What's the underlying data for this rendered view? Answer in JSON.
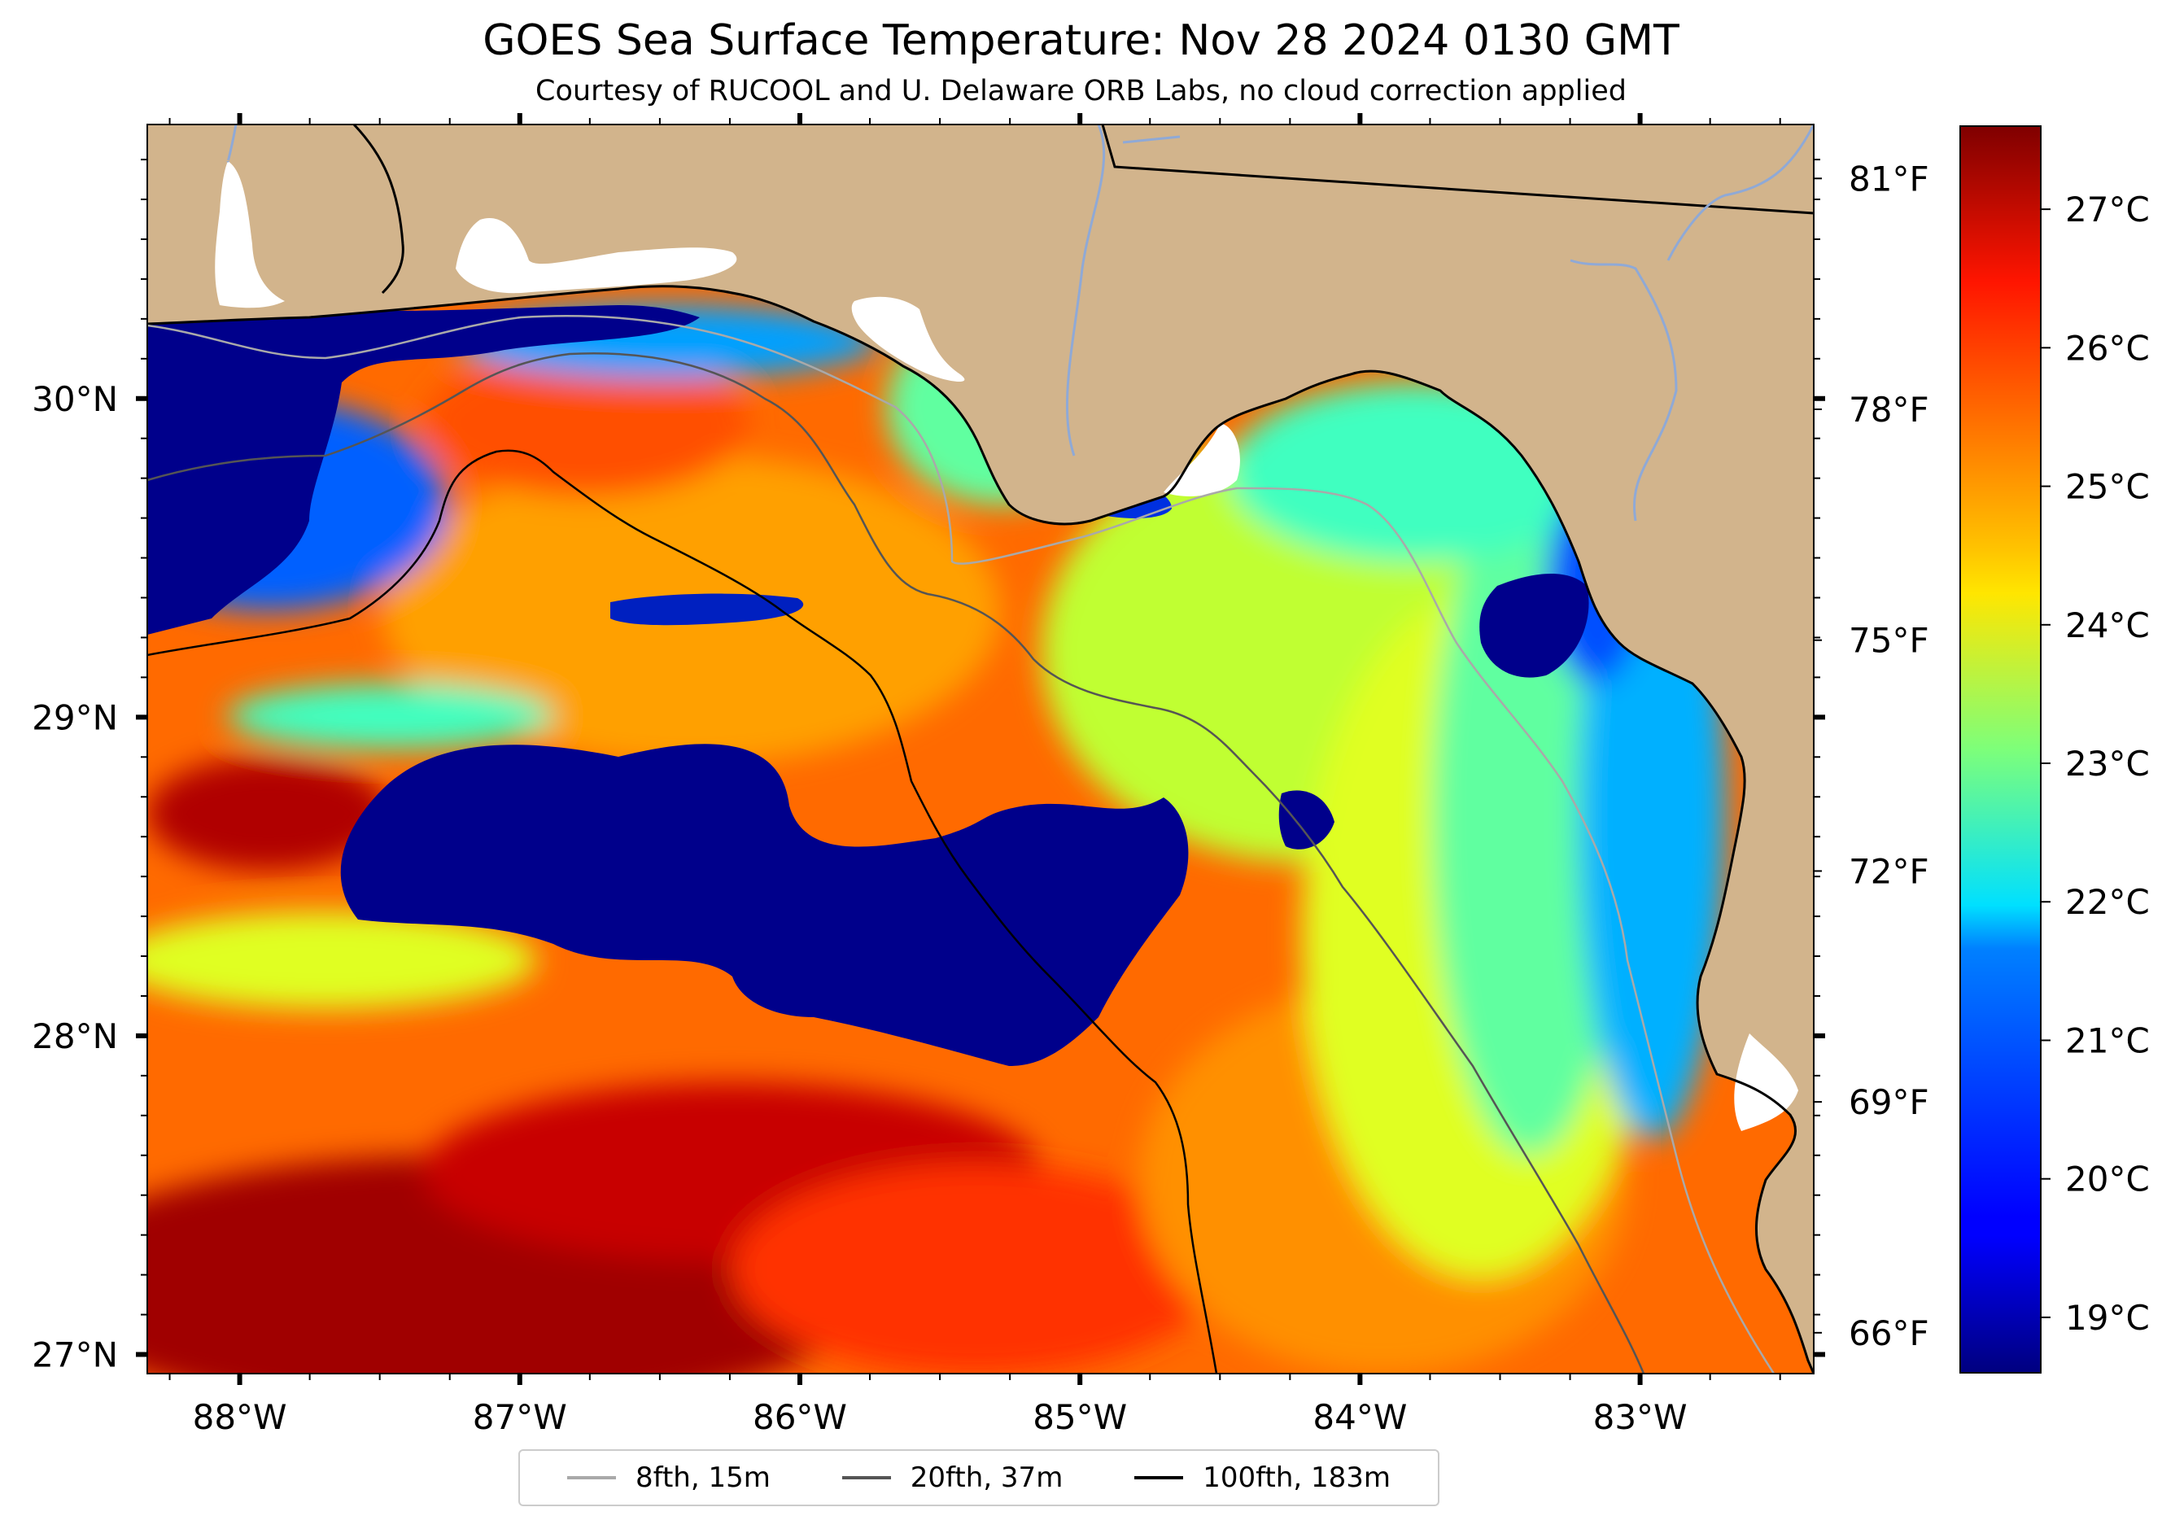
{
  "title": "GOES Sea Surface Temperature: Nov 28 2024 0130 GMT",
  "subtitle": "Courtesy of RUCOOL and U. Delaware ORB Labs, no cloud correction applied",
  "map": {
    "lon_range": [
      -88.33,
      -82.38
    ],
    "lat_range": [
      26.94,
      30.86
    ],
    "lon_ticks": [
      {
        "value": -88,
        "label": "88°W"
      },
      {
        "value": -87,
        "label": "87°W"
      },
      {
        "value": -86,
        "label": "86°W"
      },
      {
        "value": -85,
        "label": "85°W"
      },
      {
        "value": -84,
        "label": "84°W"
      },
      {
        "value": -83,
        "label": "83°W"
      }
    ],
    "lat_ticks": [
      {
        "value": 30,
        "label": "30°N"
      },
      {
        "value": 29,
        "label": "29°N"
      },
      {
        "value": 28,
        "label": "28°N"
      },
      {
        "value": 27,
        "label": "27°N"
      }
    ],
    "fahrenheit_ticks": [
      {
        "value": 81,
        "label": "81°F"
      },
      {
        "value": 78,
        "label": "78°F"
      },
      {
        "value": 75,
        "label": "75°F"
      },
      {
        "value": 72,
        "label": "72°F"
      },
      {
        "value": 69,
        "label": "69°F"
      },
      {
        "value": 66,
        "label": "66°F"
      }
    ],
    "land_color": "#d2b48c",
    "cold_color": "#00008b"
  },
  "colorbar": {
    "colormap": "jet",
    "range_c": [
      18.6,
      27.6
    ],
    "ticks": [
      {
        "value": 27,
        "label": "27°C"
      },
      {
        "value": 26,
        "label": "26°C"
      },
      {
        "value": 25,
        "label": "25°C"
      },
      {
        "value": 24,
        "label": "24°C"
      },
      {
        "value": 23,
        "label": "23°C"
      },
      {
        "value": 22,
        "label": "22°C"
      },
      {
        "value": 21,
        "label": "21°C"
      },
      {
        "value": 20,
        "label": "20°C"
      },
      {
        "value": 19,
        "label": "19°C"
      }
    ]
  },
  "legend": {
    "items": [
      {
        "label": "8fth, 15m",
        "color": "#a9a9a9"
      },
      {
        "label": "20fth, 37m",
        "color": "#555555"
      },
      {
        "label": "100fth, 183m",
        "color": "#000000"
      }
    ]
  }
}
